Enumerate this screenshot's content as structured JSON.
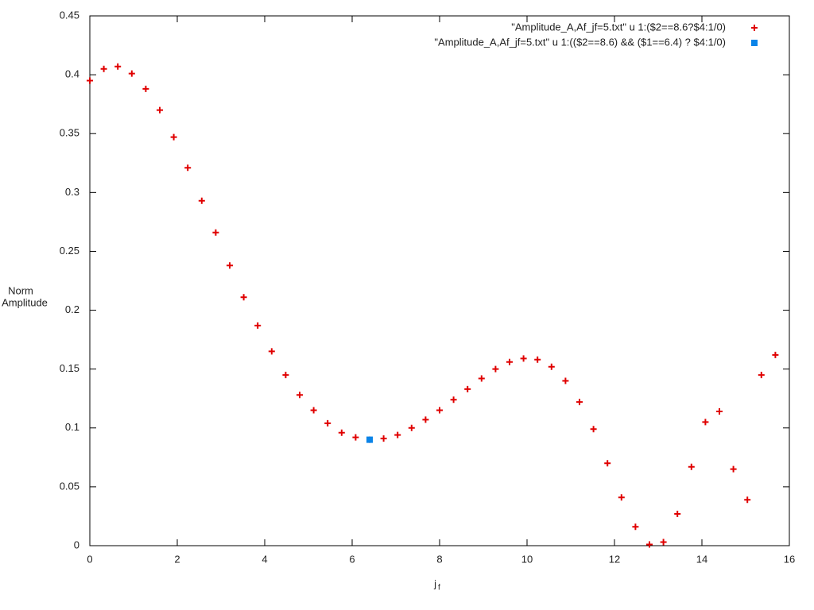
{
  "chart_data": {
    "type": "scatter",
    "xlabel": {
      "base": "j",
      "subscript": "f"
    },
    "ylabel": [
      "Norm",
      "Amplitude"
    ],
    "xlim": [
      0,
      16
    ],
    "xticks": [
      0,
      2,
      4,
      6,
      8,
      10,
      12,
      14,
      16
    ],
    "ylim": [
      0,
      0.45
    ],
    "yticks": [
      0,
      0.05,
      0.1,
      0.15,
      0.2,
      0.25,
      0.3,
      0.35,
      0.4,
      0.45
    ],
    "legend": "top-right",
    "series": [
      {
        "name": "\"Amplitude_A,Af_jf=5.txt\" u 1:($2==8.6?$4:1/0)",
        "color": "#e00000",
        "marker": "plus",
        "x": [
          0,
          0.32,
          0.64,
          0.96,
          1.28,
          1.6,
          1.92,
          2.24,
          2.56,
          2.88,
          3.2,
          3.52,
          3.84,
          4.16,
          4.48,
          4.8,
          5.12,
          5.44,
          5.76,
          6.08,
          6.4,
          6.72,
          7.04,
          7.36,
          7.68,
          8,
          8.32,
          8.64,
          8.96,
          9.28,
          9.6,
          9.92,
          10.24,
          10.56,
          10.88,
          11.2,
          11.52,
          11.84,
          12.16,
          12.48,
          12.8,
          13.12,
          13.44,
          13.76,
          14.08,
          14.4,
          14.72,
          15.04,
          15.36,
          15.68
        ],
        "values": [
          0.395,
          0.405,
          0.407,
          0.401,
          0.388,
          0.37,
          0.347,
          0.321,
          0.293,
          0.266,
          0.238,
          0.211,
          0.187,
          0.165,
          0.145,
          0.128,
          0.115,
          0.104,
          0.096,
          0.092,
          0.09,
          0.091,
          0.094,
          0.1,
          0.107,
          0.115,
          0.124,
          0.133,
          0.142,
          0.15,
          0.156,
          0.159,
          0.158,
          0.152,
          0.14,
          0.122,
          0.099,
          0.07,
          0.041,
          0.016,
          0.001,
          0.003,
          0.027,
          0.067,
          0.105,
          0.114,
          0.065,
          0.039,
          0.145,
          0.162
        ]
      },
      {
        "name": "\"Amplitude_A,Af_jf=5.txt\" u 1:(($2==8.6) && ($1==6.4) ? $4:1/0)",
        "color": "#0a84e8",
        "marker": "square",
        "x": [
          6.4
        ],
        "values": [
          0.09
        ]
      }
    ]
  }
}
